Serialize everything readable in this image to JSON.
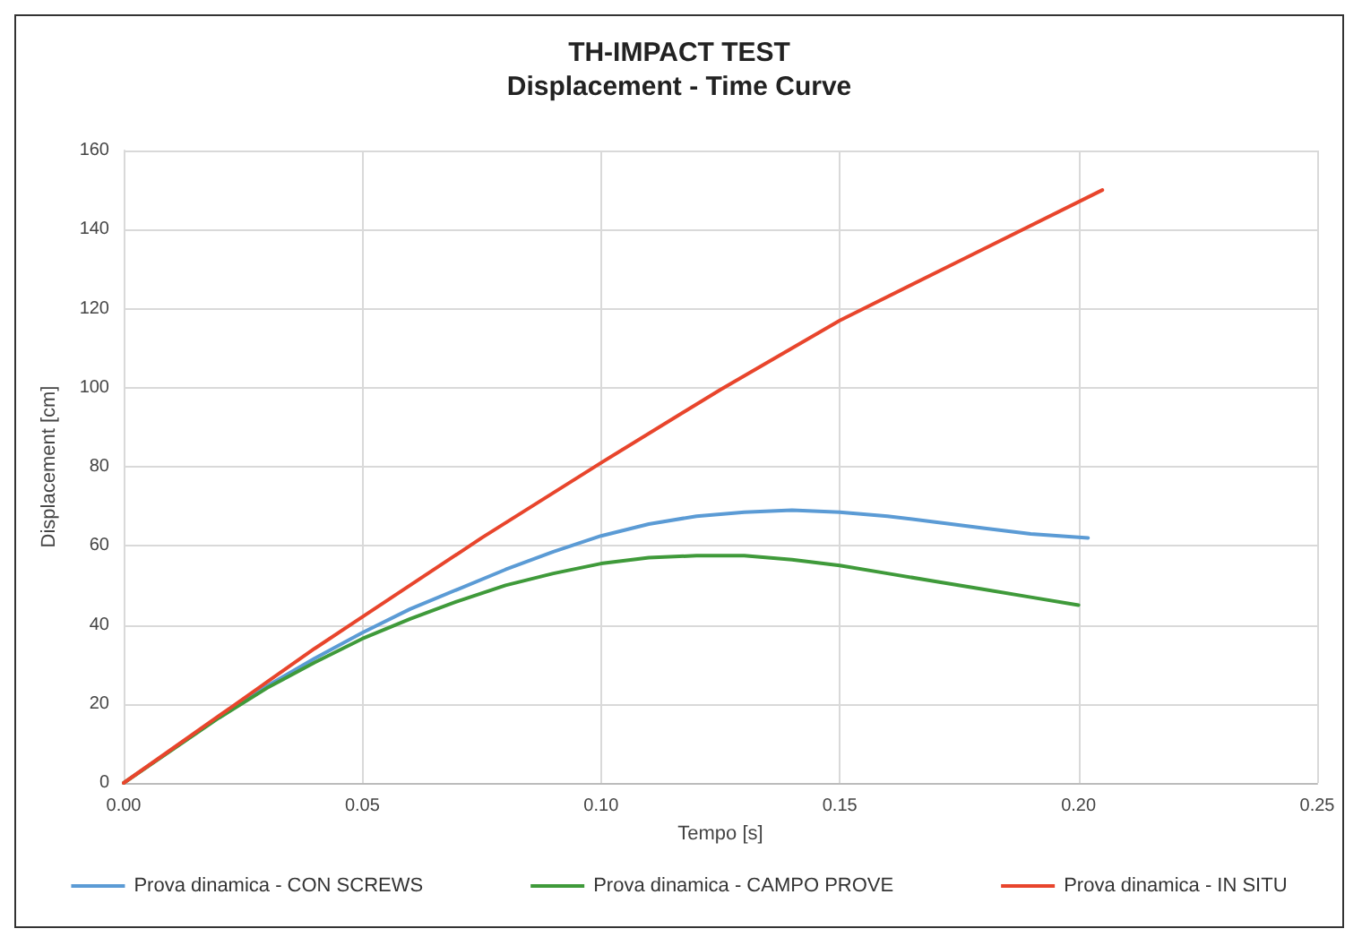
{
  "chart_data": {
    "type": "line",
    "title": "TH-IMPACT TEST\nDisplacement - Time Curve",
    "xlabel": "Tempo [s]",
    "ylabel": "Displacement [cm]",
    "xlim": [
      0,
      0.25
    ],
    "xticks": [
      {
        "value": 0,
        "label": "0.00"
      },
      {
        "value": 0.05,
        "label": "0.05"
      },
      {
        "value": 0.1,
        "label": "0.10"
      },
      {
        "value": 0.15,
        "label": "0.15"
      },
      {
        "value": 0.2,
        "label": "0.20"
      },
      {
        "value": 0.25,
        "label": "0.25"
      }
    ],
    "ylim": [
      0,
      160
    ],
    "yticks": [
      0,
      20,
      40,
      60,
      80,
      100,
      120,
      140,
      160
    ],
    "grid": true,
    "legend": "bottom",
    "marker": "none",
    "line_style": "solid",
    "series": [
      {
        "name": "Prova dinamica - CON SCREWS",
        "color": "#5b9bd5",
        "x": [
          0.02,
          0.03,
          0.04,
          0.05,
          0.06,
          0.07,
          0.08,
          0.09,
          0.1,
          0.11,
          0.12,
          0.13,
          0.14,
          0.15,
          0.16,
          0.17,
          0.18,
          0.19,
          0.202
        ],
        "values": [
          16.5,
          24.5,
          31.5,
          38,
          44,
          49,
          54,
          58.5,
          62.5,
          65.5,
          67.5,
          68.5,
          69,
          68.5,
          67.5,
          66,
          64.5,
          63,
          62
        ]
      },
      {
        "name": "Prova dinamica - CAMPO PROVE",
        "color": "#3f9a3a",
        "x": [
          0,
          0.02,
          0.03,
          0.04,
          0.05,
          0.06,
          0.07,
          0.08,
          0.09,
          0.1,
          0.11,
          0.12,
          0.13,
          0.14,
          0.15,
          0.16,
          0.17,
          0.18,
          0.19,
          0.2
        ],
        "values": [
          0,
          16.5,
          24,
          30.5,
          36.5,
          41.5,
          46,
          50,
          53,
          55.5,
          57,
          57.5,
          57.5,
          56.5,
          55,
          53,
          51,
          49,
          47,
          45
        ]
      },
      {
        "name": "Prova dinamica - IN SITU",
        "color": "#e8452c",
        "x": [
          0,
          0.01,
          0.02,
          0.03,
          0.04,
          0.05,
          0.075,
          0.1,
          0.125,
          0.15,
          0.175,
          0.205
        ],
        "values": [
          0,
          8.5,
          17,
          25.5,
          34,
          42,
          62,
          81,
          99.5,
          117,
          132,
          150
        ]
      }
    ]
  }
}
